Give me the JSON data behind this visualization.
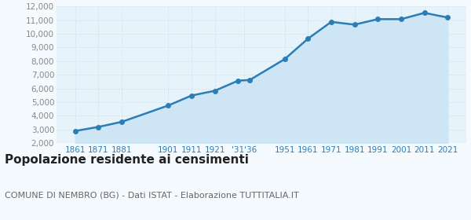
{
  "years": [
    1861,
    1871,
    1881,
    1901,
    1911,
    1921,
    1931,
    1936,
    1951,
    1961,
    1971,
    1981,
    1991,
    2001,
    2011,
    2021
  ],
  "population": [
    2880,
    3180,
    3550,
    4750,
    5480,
    5830,
    6570,
    6620,
    8150,
    9650,
    10880,
    10680,
    11080,
    11080,
    11540,
    11200
  ],
  "x_tick_pos": [
    1861,
    1871,
    1881,
    1901,
    1911,
    1921,
    1933.5,
    1951,
    1961,
    1971,
    1981,
    1991,
    2001,
    2011,
    2021
  ],
  "x_tick_labels": [
    "1861",
    "1871",
    "1881",
    "1901",
    "1911",
    "1921",
    "'31'36",
    "1951",
    "1961",
    "1971",
    "1981",
    "1991",
    "2001",
    "2011",
    "2021"
  ],
  "ylim": [
    2000,
    12000
  ],
  "yticks": [
    2000,
    3000,
    4000,
    5000,
    6000,
    7000,
    8000,
    9000,
    10000,
    11000,
    12000
  ],
  "xlim_min": 1853,
  "xlim_max": 2029,
  "line_color": "#2a7db5",
  "fill_color": "#cde5f5",
  "marker_color": "#2a7db5",
  "figure_bg": "#f5faff",
  "plot_bg": "#e6f3fb",
  "grid_color": "#c8dcea",
  "ytick_color": "#888888",
  "xtick_color": "#2a7db5",
  "title": "Popolazione residente ai censimenti",
  "subtitle": "COMUNE DI NEMBRO (BG) - Dati ISTAT - Elaborazione TUTTITALIA.IT",
  "title_fontsize": 11,
  "subtitle_fontsize": 8,
  "tick_fontsize": 7.5,
  "line_width": 1.8,
  "marker_size": 20
}
